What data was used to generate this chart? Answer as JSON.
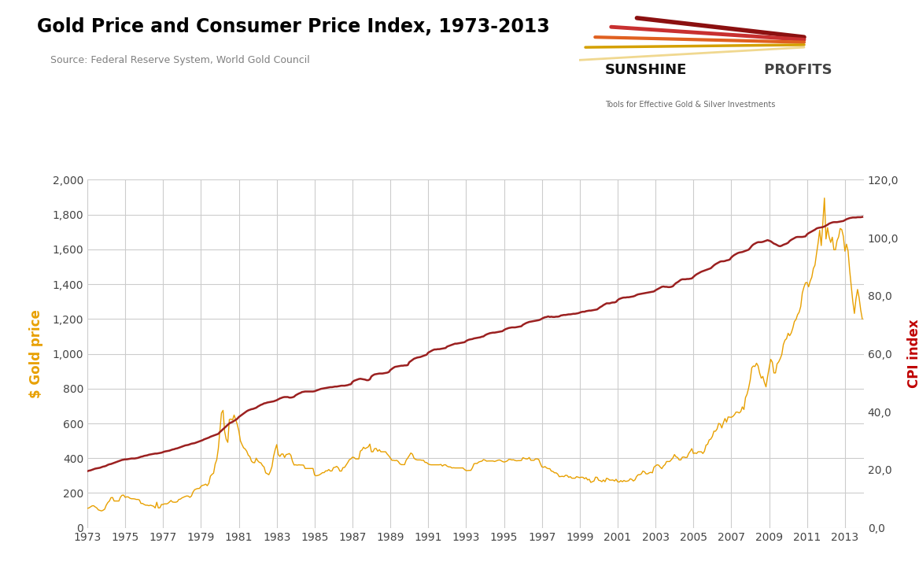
{
  "title": "Gold Price and Consumer Price Index, 1973-2013",
  "subtitle": "Source: Federal Reserve System, World Gold Council",
  "ylabel_left": "$ Gold price",
  "ylabel_right": "CPI index",
  "ylim_left": [
    0,
    2000
  ],
  "ylim_right": [
    0,
    120
  ],
  "yticks_left": [
    0,
    200,
    400,
    600,
    800,
    1000,
    1200,
    1400,
    1600,
    1800,
    2000
  ],
  "yticks_right": [
    0.0,
    20.0,
    40.0,
    60.0,
    80.0,
    100.0,
    120.0
  ],
  "xticks": [
    1973,
    1975,
    1977,
    1979,
    1981,
    1983,
    1985,
    1987,
    1989,
    1991,
    1993,
    1995,
    1997,
    1999,
    2001,
    2003,
    2005,
    2007,
    2009,
    2011,
    2013
  ],
  "gold_color": "#E8A000",
  "cpi_color": "#9B2020",
  "title_color": "#000000",
  "subtitle_color": "#808080",
  "ylabel_left_color": "#E8A000",
  "ylabel_right_color": "#C00000",
  "background_color": "#FFFFFF",
  "grid_color": "#CCCCCC",
  "years": [
    1973.0,
    1973.083,
    1973.167,
    1973.25,
    1973.333,
    1973.417,
    1973.5,
    1973.583,
    1973.667,
    1973.75,
    1973.833,
    1973.917,
    1974.0,
    1974.083,
    1974.167,
    1974.25,
    1974.333,
    1974.417,
    1974.5,
    1974.583,
    1974.667,
    1974.75,
    1974.833,
    1974.917,
    1975.0,
    1975.083,
    1975.167,
    1975.25,
    1975.333,
    1975.417,
    1975.5,
    1975.583,
    1975.667,
    1975.75,
    1975.833,
    1975.917,
    1976.0,
    1976.083,
    1976.167,
    1976.25,
    1976.333,
    1976.417,
    1976.5,
    1976.583,
    1976.667,
    1976.75,
    1976.833,
    1976.917,
    1977.0,
    1977.083,
    1977.167,
    1977.25,
    1977.333,
    1977.417,
    1977.5,
    1977.583,
    1977.667,
    1977.75,
    1977.833,
    1977.917,
    1978.0,
    1978.083,
    1978.167,
    1978.25,
    1978.333,
    1978.417,
    1978.5,
    1978.583,
    1978.667,
    1978.75,
    1978.833,
    1978.917,
    1979.0,
    1979.083,
    1979.167,
    1979.25,
    1979.333,
    1979.417,
    1979.5,
    1979.583,
    1979.667,
    1979.75,
    1979.833,
    1979.917,
    1980.0,
    1980.083,
    1980.167,
    1980.25,
    1980.333,
    1980.417,
    1980.5,
    1980.583,
    1980.667,
    1980.75,
    1980.833,
    1980.917,
    1981.0,
    1981.083,
    1981.167,
    1981.25,
    1981.333,
    1981.417,
    1981.5,
    1981.583,
    1981.667,
    1981.75,
    1981.833,
    1981.917,
    1982.0,
    1982.083,
    1982.167,
    1982.25,
    1982.333,
    1982.417,
    1982.5,
    1982.583,
    1982.667,
    1982.75,
    1982.833,
    1982.917,
    1983.0,
    1983.083,
    1983.167,
    1983.25,
    1983.333,
    1983.417,
    1983.5,
    1983.583,
    1983.667,
    1983.75,
    1983.833,
    1983.917,
    1984.0,
    1984.083,
    1984.167,
    1984.25,
    1984.333,
    1984.417,
    1984.5,
    1984.583,
    1984.667,
    1984.75,
    1984.833,
    1984.917,
    1985.0,
    1985.083,
    1985.167,
    1985.25,
    1985.333,
    1985.417,
    1985.5,
    1985.583,
    1985.667,
    1985.75,
    1985.833,
    1985.917,
    1986.0,
    1986.083,
    1986.167,
    1986.25,
    1986.333,
    1986.417,
    1986.5,
    1986.583,
    1986.667,
    1986.75,
    1986.833,
    1986.917,
    1987.0,
    1987.083,
    1987.167,
    1987.25,
    1987.333,
    1987.417,
    1987.5,
    1987.583,
    1987.667,
    1987.75,
    1987.833,
    1987.917,
    1988.0,
    1988.083,
    1988.167,
    1988.25,
    1988.333,
    1988.417,
    1988.5,
    1988.583,
    1988.667,
    1988.75,
    1988.833,
    1988.917,
    1989.0,
    1989.083,
    1989.167,
    1989.25,
    1989.333,
    1989.417,
    1989.5,
    1989.583,
    1989.667,
    1989.75,
    1989.833,
    1989.917,
    1990.0,
    1990.083,
    1990.167,
    1990.25,
    1990.333,
    1990.417,
    1990.5,
    1990.583,
    1990.667,
    1990.75,
    1990.833,
    1990.917,
    1991.0,
    1991.083,
    1991.167,
    1991.25,
    1991.333,
    1991.417,
    1991.5,
    1991.583,
    1991.667,
    1991.75,
    1991.833,
    1991.917,
    1992.0,
    1992.083,
    1992.167,
    1992.25,
    1992.333,
    1992.417,
    1992.5,
    1992.583,
    1992.667,
    1992.75,
    1992.833,
    1992.917,
    1993.0,
    1993.083,
    1993.167,
    1993.25,
    1993.333,
    1993.417,
    1993.5,
    1993.583,
    1993.667,
    1993.75,
    1993.833,
    1993.917,
    1994.0,
    1994.083,
    1994.167,
    1994.25,
    1994.333,
    1994.417,
    1994.5,
    1994.583,
    1994.667,
    1994.75,
    1994.833,
    1994.917,
    1995.0,
    1995.083,
    1995.167,
    1995.25,
    1995.333,
    1995.417,
    1995.5,
    1995.583,
    1995.667,
    1995.75,
    1995.833,
    1995.917,
    1996.0,
    1996.083,
    1996.167,
    1996.25,
    1996.333,
    1996.417,
    1996.5,
    1996.583,
    1996.667,
    1996.75,
    1996.833,
    1996.917,
    1997.0,
    1997.083,
    1997.167,
    1997.25,
    1997.333,
    1997.417,
    1997.5,
    1997.583,
    1997.667,
    1997.75,
    1997.833,
    1997.917,
    1998.0,
    1998.083,
    1998.167,
    1998.25,
    1998.333,
    1998.417,
    1998.5,
    1998.583,
    1998.667,
    1998.75,
    1998.833,
    1998.917,
    1999.0,
    1999.083,
    1999.167,
    1999.25,
    1999.333,
    1999.417,
    1999.5,
    1999.583,
    1999.667,
    1999.75,
    1999.833,
    1999.917,
    2000.0,
    2000.083,
    2000.167,
    2000.25,
    2000.333,
    2000.417,
    2000.5,
    2000.583,
    2000.667,
    2000.75,
    2000.833,
    2000.917,
    2001.0,
    2001.083,
    2001.167,
    2001.25,
    2001.333,
    2001.417,
    2001.5,
    2001.583,
    2001.667,
    2001.75,
    2001.833,
    2001.917,
    2002.0,
    2002.083,
    2002.167,
    2002.25,
    2002.333,
    2002.417,
    2002.5,
    2002.583,
    2002.667,
    2002.75,
    2002.833,
    2002.917,
    2003.0,
    2003.083,
    2003.167,
    2003.25,
    2003.333,
    2003.417,
    2003.5,
    2003.583,
    2003.667,
    2003.75,
    2003.833,
    2003.917,
    2004.0,
    2004.083,
    2004.167,
    2004.25,
    2004.333,
    2004.417,
    2004.5,
    2004.583,
    2004.667,
    2004.75,
    2004.833,
    2004.917,
    2005.0,
    2005.083,
    2005.167,
    2005.25,
    2005.333,
    2005.417,
    2005.5,
    2005.583,
    2005.667,
    2005.75,
    2005.833,
    2005.917,
    2006.0,
    2006.083,
    2006.167,
    2006.25,
    2006.333,
    2006.417,
    2006.5,
    2006.583,
    2006.667,
    2006.75,
    2006.833,
    2006.917,
    2007.0,
    2007.083,
    2007.167,
    2007.25,
    2007.333,
    2007.417,
    2007.5,
    2007.583,
    2007.667,
    2007.75,
    2007.833,
    2007.917,
    2008.0,
    2008.083,
    2008.167,
    2008.25,
    2008.333,
    2008.417,
    2008.5,
    2008.583,
    2008.667,
    2008.75,
    2008.833,
    2008.917,
    2009.0,
    2009.083,
    2009.167,
    2009.25,
    2009.333,
    2009.417,
    2009.5,
    2009.583,
    2009.667,
    2009.75,
    2009.833,
    2009.917,
    2010.0,
    2010.083,
    2010.167,
    2010.25,
    2010.333,
    2010.417,
    2010.5,
    2010.583,
    2010.667,
    2010.75,
    2010.833,
    2010.917,
    2011.0,
    2011.083,
    2011.167,
    2011.25,
    2011.333,
    2011.417,
    2011.5,
    2011.583,
    2011.667,
    2011.75,
    2011.833,
    2011.917,
    2012.0,
    2012.083,
    2012.167,
    2012.25,
    2012.333,
    2012.417,
    2012.5,
    2012.583,
    2012.667,
    2012.75,
    2012.833,
    2012.917,
    2013.0,
    2013.083,
    2013.167,
    2013.25,
    2013.333,
    2013.417,
    2013.5,
    2013.583,
    2013.667,
    2013.75,
    2013.833,
    2013.917
  ],
  "gold_monthly": [
    112,
    114,
    120,
    126,
    127,
    120,
    114,
    103,
    100,
    97,
    101,
    107,
    130,
    145,
    154,
    173,
    174,
    154,
    154,
    154,
    154,
    176,
    187,
    188,
    175,
    178,
    177,
    170,
    167,
    167,
    166,
    163,
    163,
    160,
    140,
    140,
    134,
    130,
    130,
    127,
    130,
    127,
    124,
    114,
    147,
    114,
    115,
    134,
    134,
    138,
    137,
    140,
    148,
    157,
    148,
    147,
    147,
    150,
    163,
    165,
    172,
    176,
    180,
    183,
    182,
    175,
    183,
    206,
    219,
    223,
    226,
    226,
    238,
    244,
    246,
    251,
    242,
    256,
    297,
    307,
    314,
    366,
    391,
    455,
    559,
    660,
    675,
    554,
    509,
    491,
    622,
    625,
    619,
    648,
    622,
    594,
    557,
    500,
    479,
    460,
    453,
    440,
    417,
    409,
    383,
    375,
    374,
    400,
    385,
    376,
    373,
    358,
    349,
    316,
    311,
    305,
    325,
    352,
    410,
    448,
    478,
    421,
    410,
    424,
    424,
    404,
    421,
    423,
    427,
    416,
    382,
    361,
    362,
    360,
    362,
    361,
    361,
    360,
    341,
    341,
    341,
    341,
    341,
    341,
    303,
    299,
    301,
    304,
    310,
    317,
    317,
    327,
    327,
    335,
    326,
    327,
    346,
    348,
    353,
    345,
    326,
    326,
    346,
    347,
    361,
    375,
    391,
    396,
    406,
    404,
    396,
    396,
    396,
    441,
    447,
    463,
    455,
    460,
    465,
    481,
    437,
    437,
    455,
    456,
    440,
    449,
    437,
    437,
    437,
    437,
    424,
    414,
    401,
    388,
    388,
    386,
    388,
    381,
    368,
    363,
    363,
    363,
    388,
    401,
    415,
    430,
    423,
    400,
    393,
    390,
    390,
    390,
    388,
    388,
    376,
    375,
    367,
    363,
    362,
    362,
    362,
    362,
    362,
    362,
    364,
    355,
    362,
    362,
    354,
    350,
    350,
    344,
    345,
    344,
    344,
    344,
    344,
    344,
    344,
    335,
    329,
    329,
    330,
    330,
    345,
    368,
    370,
    370,
    378,
    381,
    383,
    392,
    389,
    383,
    384,
    384,
    384,
    384,
    381,
    384,
    388,
    390,
    387,
    381,
    378,
    380,
    384,
    393,
    393,
    390,
    391,
    387,
    385,
    386,
    386,
    387,
    403,
    399,
    396,
    396,
    404,
    388,
    388,
    388,
    396,
    396,
    393,
    370,
    350,
    348,
    352,
    344,
    340,
    340,
    326,
    324,
    316,
    316,
    309,
    294,
    295,
    296,
    294,
    302,
    301,
    290,
    294,
    285,
    285,
    285,
    294,
    291,
    288,
    291,
    290,
    282,
    288,
    275,
    279,
    261,
    265,
    269,
    291,
    290,
    273,
    271,
    265,
    275,
    265,
    285,
    281,
    274,
    274,
    275,
    269,
    279,
    265,
    263,
    271,
    265,
    272,
    267,
    268,
    271,
    282,
    278,
    269,
    276,
    295,
    305,
    305,
    310,
    326,
    322,
    310,
    310,
    316,
    319,
    316,
    348,
    356,
    362,
    360,
    349,
    340,
    355,
    363,
    381,
    381,
    381,
    391,
    402,
    421,
    408,
    404,
    390,
    390,
    406,
    407,
    404,
    405,
    427,
    440,
    455,
    427,
    430,
    427,
    437,
    437,
    437,
    427,
    440,
    475,
    480,
    505,
    510,
    525,
    555,
    555,
    568,
    600,
    596,
    574,
    604,
    628,
    607,
    637,
    636,
    635,
    640,
    650,
    665,
    665,
    660,
    668,
    695,
    680,
    748,
    768,
    804,
    850,
    920,
    930,
    927,
    946,
    930,
    888,
    860,
    870,
    835,
    810,
    869,
    920,
    968,
    952,
    890,
    890,
    942,
    953,
    972,
    996,
    1053,
    1078,
    1087,
    1118,
    1104,
    1120,
    1148,
    1186,
    1197,
    1225,
    1239,
    1272,
    1349,
    1382,
    1408,
    1410,
    1385,
    1418,
    1440,
    1490,
    1509,
    1575,
    1636,
    1710,
    1622,
    1750,
    1895,
    1660,
    1725,
    1672,
    1640,
    1670,
    1598,
    1598,
    1650,
    1672,
    1720,
    1714,
    1675,
    1590,
    1630,
    1590,
    1480,
    1390,
    1300,
    1232,
    1315,
    1370,
    1322,
    1252,
    1200
  ],
  "cpi_monthly": [
    19.5,
    19.7,
    19.8,
    20.0,
    20.2,
    20.4,
    20.5,
    20.6,
    20.7,
    20.9,
    21.1,
    21.2,
    21.4,
    21.7,
    21.9,
    22.0,
    22.2,
    22.4,
    22.6,
    22.8,
    23.0,
    23.2,
    23.4,
    23.5,
    23.6,
    23.6,
    23.7,
    23.8,
    23.9,
    23.9,
    23.9,
    24.0,
    24.1,
    24.3,
    24.5,
    24.6,
    24.8,
    24.9,
    25.0,
    25.2,
    25.3,
    25.4,
    25.5,
    25.6,
    25.6,
    25.7,
    25.8,
    25.9,
    26.1,
    26.3,
    26.4,
    26.5,
    26.6,
    26.8,
    27.0,
    27.1,
    27.3,
    27.4,
    27.6,
    27.8,
    28.0,
    28.2,
    28.4,
    28.5,
    28.6,
    28.8,
    29.0,
    29.1,
    29.2,
    29.4,
    29.6,
    29.8,
    30.0,
    30.2,
    30.5,
    30.7,
    30.9,
    31.1,
    31.4,
    31.6,
    31.8,
    32.0,
    32.2,
    32.4,
    33.0,
    33.5,
    34.0,
    34.5,
    35.0,
    35.5,
    36.0,
    36.3,
    36.5,
    36.9,
    37.2,
    37.6,
    38.2,
    38.6,
    39.0,
    39.4,
    39.8,
    40.2,
    40.5,
    40.7,
    40.9,
    41.0,
    41.2,
    41.4,
    41.8,
    42.1,
    42.4,
    42.6,
    42.9,
    43.0,
    43.2,
    43.3,
    43.4,
    43.5,
    43.6,
    43.8,
    44.0,
    44.3,
    44.6,
    44.8,
    45.0,
    45.1,
    45.1,
    45.1,
    44.9,
    44.9,
    45.0,
    45.2,
    45.7,
    46.0,
    46.3,
    46.5,
    46.8,
    46.9,
    47.0,
    47.0,
    47.0,
    47.0,
    47.0,
    47.0,
    47.1,
    47.3,
    47.5,
    47.7,
    47.9,
    48.0,
    48.1,
    48.2,
    48.3,
    48.4,
    48.5,
    48.5,
    48.6,
    48.7,
    48.7,
    48.8,
    48.9,
    49.0,
    49.0,
    49.0,
    49.1,
    49.2,
    49.4,
    49.5,
    50.3,
    50.7,
    50.9,
    51.1,
    51.3,
    51.4,
    51.3,
    51.2,
    51.1,
    50.9,
    50.9,
    51.2,
    52.2,
    52.6,
    52.9,
    53.0,
    53.1,
    53.2,
    53.2,
    53.2,
    53.3,
    53.4,
    53.5,
    53.7,
    54.4,
    54.8,
    55.2,
    55.5,
    55.6,
    55.7,
    55.8,
    55.9,
    55.9,
    56.0,
    56.0,
    56.1,
    57.1,
    57.5,
    57.9,
    58.3,
    58.5,
    58.7,
    58.8,
    58.9,
    59.1,
    59.3,
    59.5,
    59.7,
    60.4,
    60.7,
    61.0,
    61.3,
    61.5,
    61.5,
    61.6,
    61.6,
    61.7,
    61.8,
    61.9,
    62.0,
    62.5,
    62.7,
    62.9,
    63.1,
    63.3,
    63.5,
    63.5,
    63.6,
    63.7,
    63.8,
    63.9,
    64.0,
    64.4,
    64.7,
    64.9,
    65.0,
    65.1,
    65.3,
    65.4,
    65.5,
    65.6,
    65.7,
    65.9,
    66.0,
    66.4,
    66.7,
    66.9,
    67.1,
    67.2,
    67.3,
    67.3,
    67.4,
    67.5,
    67.6,
    67.7,
    67.8,
    68.2,
    68.5,
    68.7,
    68.9,
    69.0,
    69.1,
    69.1,
    69.1,
    69.2,
    69.3,
    69.4,
    69.5,
    70.0,
    70.3,
    70.6,
    70.8,
    71.0,
    71.1,
    71.2,
    71.3,
    71.4,
    71.5,
    71.6,
    71.8,
    72.1,
    72.4,
    72.6,
    72.7,
    72.9,
    72.7,
    72.8,
    72.7,
    72.7,
    72.8,
    72.8,
    72.9,
    73.2,
    73.3,
    73.4,
    73.4,
    73.5,
    73.6,
    73.6,
    73.7,
    73.8,
    73.8,
    73.9,
    74.0,
    74.2,
    74.4,
    74.5,
    74.5,
    74.7,
    74.8,
    74.9,
    74.9,
    75.0,
    75.1,
    75.2,
    75.3,
    75.7,
    76.1,
    76.4,
    76.8,
    77.1,
    77.4,
    77.4,
    77.4,
    77.6,
    77.7,
    77.7,
    77.9,
    78.5,
    78.9,
    79.1,
    79.3,
    79.4,
    79.4,
    79.5,
    79.5,
    79.6,
    79.7,
    79.8,
    80.0,
    80.3,
    80.5,
    80.6,
    80.7,
    80.8,
    80.9,
    81.0,
    81.1,
    81.2,
    81.3,
    81.4,
    81.5,
    81.9,
    82.2,
    82.5,
    82.8,
    83.1,
    83.2,
    83.1,
    83.1,
    83.0,
    83.0,
    83.1,
    83.3,
    83.9,
    84.4,
    84.7,
    85.1,
    85.5,
    85.7,
    85.7,
    85.7,
    85.8,
    85.8,
    85.9,
    86.0,
    86.5,
    87.0,
    87.4,
    87.7,
    88.0,
    88.3,
    88.5,
    88.7,
    88.9,
    89.1,
    89.3,
    89.5,
    90.0,
    90.5,
    90.9,
    91.2,
    91.5,
    91.8,
    91.9,
    91.9,
    92.0,
    92.2,
    92.3,
    92.5,
    93.2,
    93.7,
    94.1,
    94.4,
    94.7,
    94.9,
    95.0,
    95.1,
    95.3,
    95.5,
    95.7,
    95.9,
    96.5,
    97.2,
    97.7,
    98.0,
    98.3,
    98.5,
    98.5,
    98.5,
    98.6,
    98.8,
    99.0,
    99.2,
    99.0,
    98.8,
    98.4,
    98.0,
    97.8,
    97.5,
    97.2,
    97.1,
    97.3,
    97.6,
    97.8,
    98.0,
    98.3,
    98.9,
    99.3,
    99.6,
    99.9,
    100.2,
    100.3,
    100.3,
    100.3,
    100.3,
    100.4,
    100.5,
    101.2,
    101.6,
    101.9,
    102.2,
    102.5,
    102.8,
    103.2,
    103.4,
    103.5,
    103.6,
    103.7,
    103.9,
    104.2,
    104.5,
    104.9,
    105.1,
    105.3,
    105.4,
    105.4,
    105.4,
    105.5,
    105.6,
    105.7,
    105.8,
    106.1,
    106.4,
    106.6,
    106.8,
    106.9,
    107.0,
    107.0,
    107.0,
    107.1,
    107.1,
    107.1,
    107.2
  ],
  "logo_colors": [
    "#8B1010",
    "#C83030",
    "#E06020",
    "#D4A000",
    "#F0D890"
  ],
  "logo_text": "SUNSHINE PROFITS",
  "logo_subtext": "Tools for Effective Gold & Silver Investments"
}
